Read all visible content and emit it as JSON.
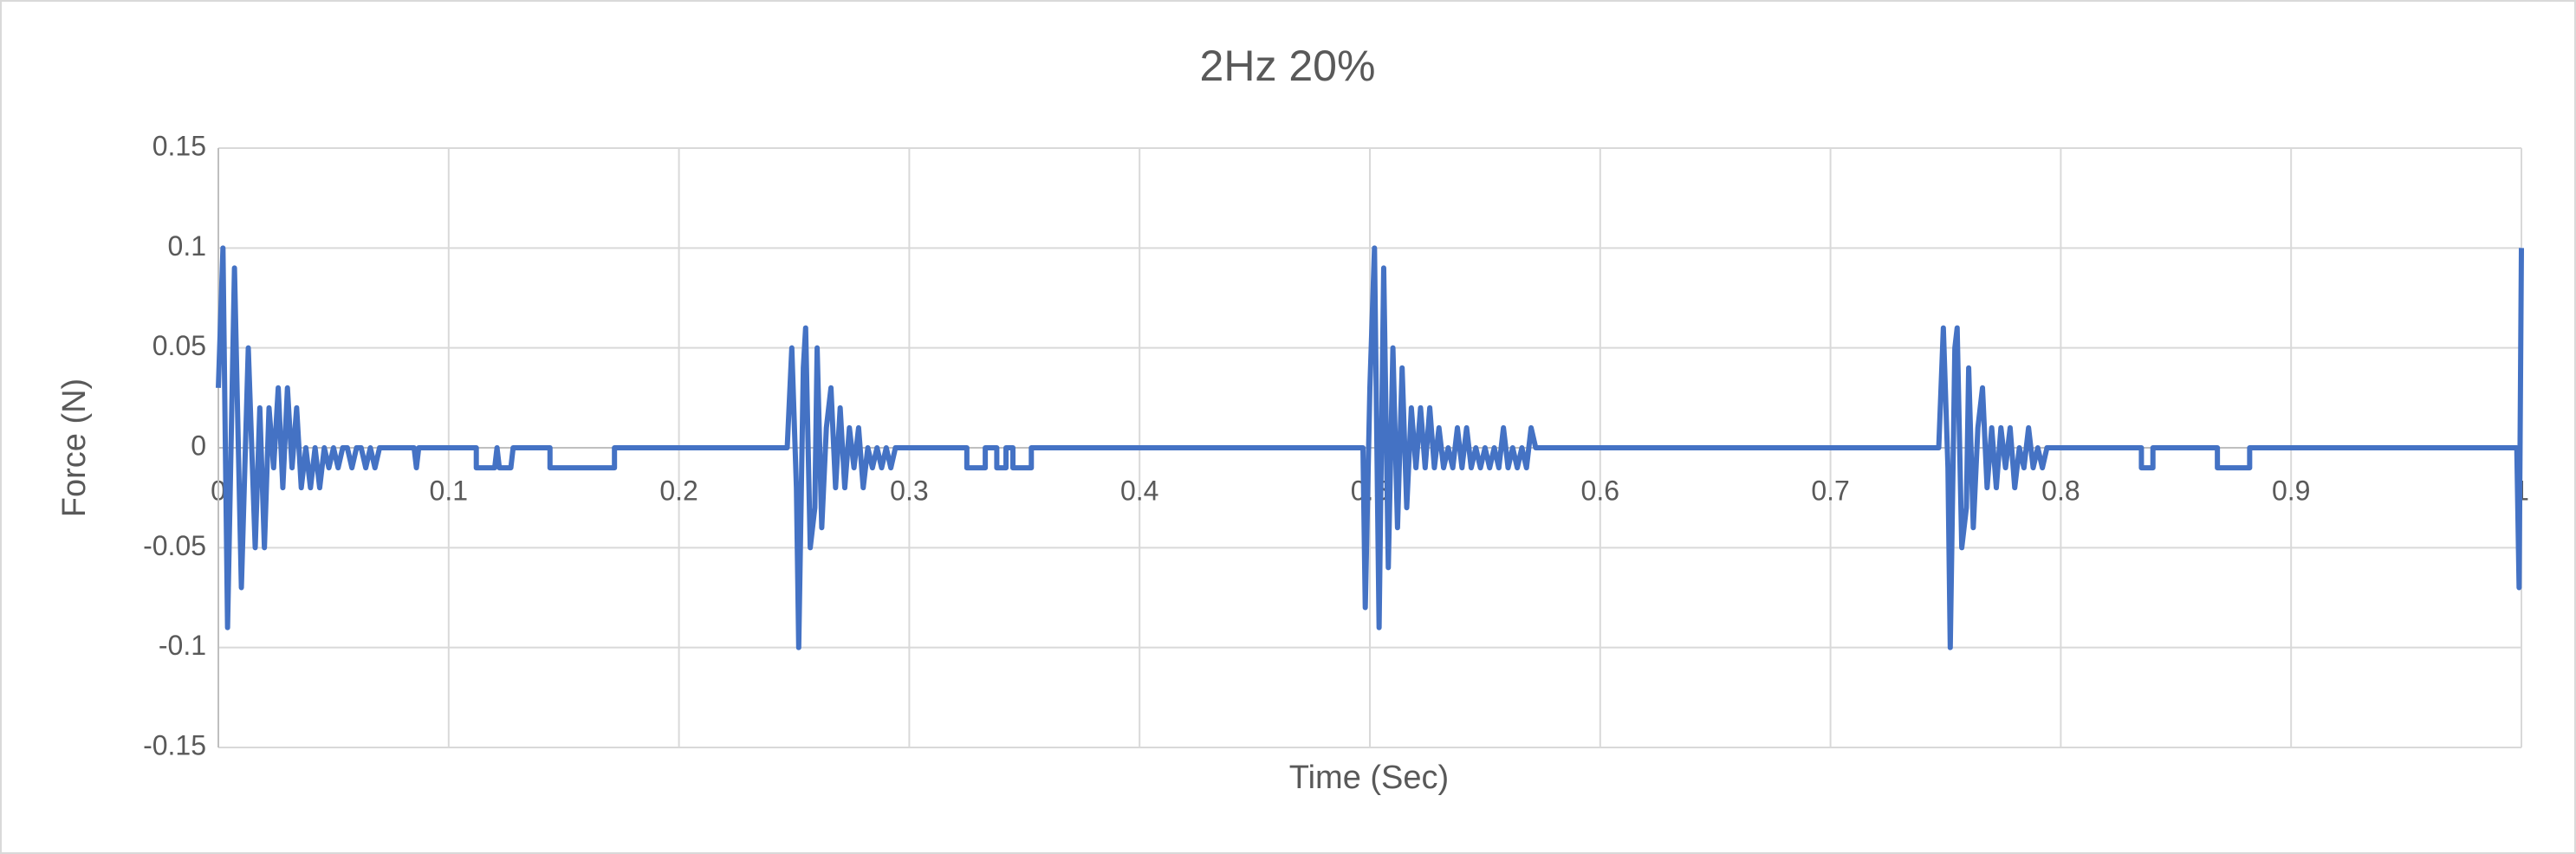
{
  "chart_data": {
    "type": "line",
    "title": "2Hz 20%",
    "x_label": "Time (Sec)",
    "y_label": "Force (N)",
    "xlim": [
      0,
      1
    ],
    "xticks": [
      0,
      0.1,
      0.2,
      0.3,
      0.4,
      0.5,
      0.6,
      0.7,
      0.8,
      0.9,
      1
    ],
    "ylim": [
      -0.15,
      0.15
    ],
    "yticks": [
      -0.15,
      -0.1,
      -0.05,
      0,
      0.05,
      0.1,
      0.15
    ],
    "grid": true,
    "series": [
      {
        "name": "Force (N)",
        "color": "#4472c4",
        "x": [
          0,
          0.002,
          0.004,
          0.007,
          0.01,
          0.013,
          0.016,
          0.018,
          0.02,
          0.022,
          0.024,
          0.026,
          0.028,
          0.03,
          0.032,
          0.034,
          0.036,
          0.038,
          0.04,
          0.042,
          0.044,
          0.046,
          0.048,
          0.05,
          0.052,
          0.054,
          0.056,
          0.058,
          0.06,
          0.062,
          0.064,
          0.066,
          0.068,
          0.07,
          0.072,
          0.085,
          0.086,
          0.087,
          0.112,
          0.112,
          0.12,
          0.121,
          0.122,
          0.127,
          0.128,
          0.144,
          0.144,
          0.172,
          0.172,
          0.247,
          0.249,
          0.251,
          0.252,
          0.254,
          0.255,
          0.257,
          0.259,
          0.26,
          0.262,
          0.264,
          0.266,
          0.268,
          0.27,
          0.272,
          0.274,
          0.276,
          0.278,
          0.28,
          0.282,
          0.284,
          0.286,
          0.288,
          0.29,
          0.292,
          0.294,
          0.325,
          0.325,
          0.333,
          0.333,
          0.338,
          0.338,
          0.342,
          0.342,
          0.345,
          0.345,
          0.353,
          0.353,
          0.497,
          0.498,
          0.5,
          0.502,
          0.504,
          0.506,
          0.508,
          0.51,
          0.512,
          0.514,
          0.516,
          0.518,
          0.52,
          0.522,
          0.524,
          0.526,
          0.528,
          0.53,
          0.532,
          0.534,
          0.536,
          0.538,
          0.54,
          0.542,
          0.544,
          0.546,
          0.548,
          0.55,
          0.552,
          0.554,
          0.556,
          0.558,
          0.56,
          0.562,
          0.564,
          0.566,
          0.568,
          0.57,
          0.572,
          0.747,
          0.749,
          0.751,
          0.752,
          0.754,
          0.755,
          0.757,
          0.759,
          0.76,
          0.762,
          0.764,
          0.766,
          0.768,
          0.77,
          0.772,
          0.774,
          0.776,
          0.778,
          0.78,
          0.782,
          0.784,
          0.786,
          0.788,
          0.79,
          0.792,
          0.794,
          0.835,
          0.835,
          0.84,
          0.84,
          0.868,
          0.868,
          0.882,
          0.882,
          0.998,
          0.999,
          1
        ],
        "values": [
          0.03,
          0.1,
          -0.09,
          0.09,
          -0.07,
          0.05,
          -0.05,
          0.02,
          -0.05,
          0.02,
          -0.01,
          0.03,
          -0.02,
          0.03,
          -0.01,
          0.02,
          -0.02,
          0,
          -0.02,
          0,
          -0.02,
          0,
          -0.01,
          0,
          -0.01,
          0,
          0,
          -0.01,
          0,
          0,
          -0.01,
          0,
          -0.01,
          0,
          0,
          0,
          -0.01,
          0,
          0,
          -0.01,
          -0.01,
          0,
          -0.01,
          -0.01,
          0,
          0,
          -0.01,
          -0.01,
          0,
          0,
          0.05,
          -0.02,
          -0.1,
          0.04,
          0.06,
          -0.05,
          -0.03,
          0.05,
          -0.04,
          0.01,
          0.03,
          -0.02,
          0.02,
          -0.02,
          0.01,
          -0.01,
          0.01,
          -0.02,
          0,
          -0.01,
          0,
          -0.01,
          0,
          -0.01,
          0,
          0,
          -0.01,
          -0.01,
          0,
          0,
          -0.01,
          -0.01,
          0,
          0,
          -0.01,
          -0.01,
          0,
          0,
          -0.08,
          0.03,
          0.1,
          -0.09,
          0.09,
          -0.06,
          0.05,
          -0.04,
          0.04,
          -0.03,
          0.02,
          -0.01,
          0.02,
          -0.01,
          0.02,
          -0.01,
          0.01,
          -0.01,
          0,
          -0.01,
          0.01,
          -0.01,
          0.01,
          -0.01,
          0,
          -0.01,
          0,
          -0.01,
          0,
          -0.01,
          0.01,
          -0.01,
          0,
          -0.01,
          0,
          -0.01,
          0.01,
          0,
          0,
          0.06,
          -0.01,
          -0.1,
          0.05,
          0.06,
          -0.05,
          -0.03,
          0.04,
          -0.04,
          0.01,
          0.03,
          -0.02,
          0.01,
          -0.02,
          0.01,
          -0.01,
          0.01,
          -0.02,
          0,
          -0.01,
          0.01,
          -0.01,
          0,
          -0.01,
          0,
          0,
          -0.01,
          -0.01,
          0,
          0,
          -0.01,
          -0.01,
          0,
          0,
          -0.07,
          0.1
        ]
      }
    ]
  }
}
